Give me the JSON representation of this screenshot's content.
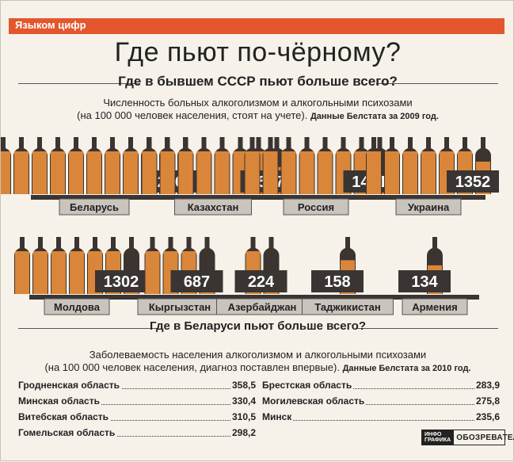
{
  "rubric": "Языком цифр",
  "title": "Где пьют по-чёрному?",
  "section1": {
    "heading": "Где в бывшем СССР пьют больше всего?",
    "desc_line1": "Численность больных алкоголизмом и алкогольными психозами",
    "desc_line2": "(на 100 000 человек населения, стоят на учете).",
    "source": "Данные Белстата за 2009 год."
  },
  "chart_data": {
    "type": "bar",
    "title": "Численность больных алкоголизмом и алкогольными психозами (на 100 000 человек населения, стоят на учете)",
    "categories": [
      "Беларусь",
      "Казахстан",
      "Россия",
      "Украина",
      "Молдова",
      "Кыргызстан",
      "Азербайджан",
      "Таджикистан",
      "Армения"
    ],
    "values": [
      2060,
      1527,
      1421,
      1352,
      1302,
      687,
      224,
      158,
      134
    ],
    "xlabel": "",
    "ylabel": "на 100 000 человек населения"
  },
  "section2": {
    "heading": "Где в Беларуси пьют больше всего?",
    "desc_line1": "Заболеваемость населения алкоголизмом и алкогольными психозами",
    "desc_line2": "(на 100 000 человек населения, диагноз поставлен впервые).",
    "source": "Данные Белстата за 2010 год.",
    "left": [
      {
        "name": "Гродненская область",
        "value": "358,5"
      },
      {
        "name": "Минская область",
        "value": "330,4"
      },
      {
        "name": "Витебская область",
        "value": "310,5"
      },
      {
        "name": "Гомельская область",
        "value": "298,2"
      }
    ],
    "right": [
      {
        "name": "Брестская область",
        "value": "283,9"
      },
      {
        "name": "Могилевская область",
        "value": "275,8"
      },
      {
        "name": "Минск",
        "value": "235,6"
      }
    ]
  },
  "logo": {
    "mark_line1": "ИНФО",
    "mark_line2": "ГРАФИКА",
    "name": "ОБОЗРЕВАТЕЛЬ"
  },
  "colors": {
    "accent": "#e4572e",
    "bottle": "#d9863a",
    "bottle_dark": "#3c3430",
    "plaque": "#3a3532",
    "label": "#c9c4bd"
  }
}
